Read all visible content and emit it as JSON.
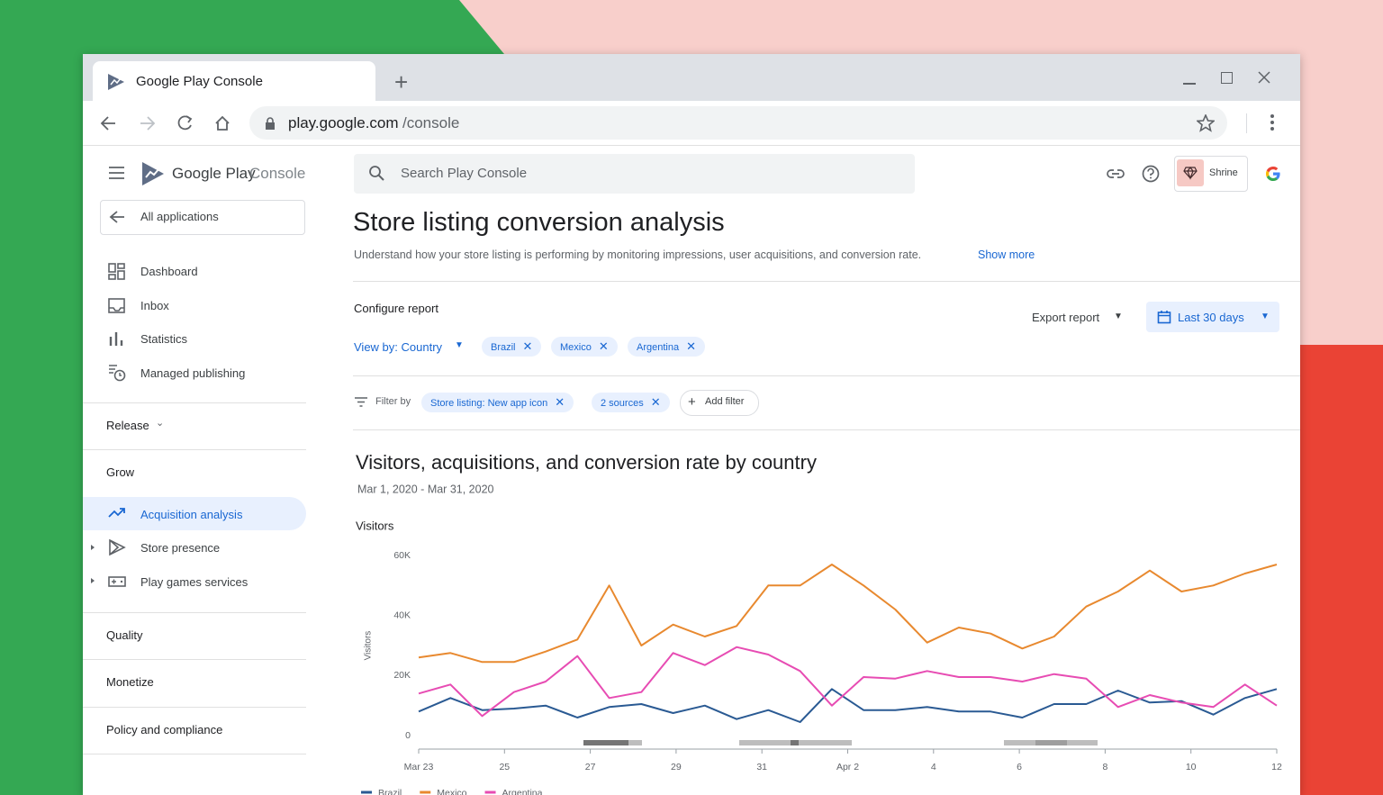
{
  "browser": {
    "tab_title": "Google Play Console",
    "url_host": "play.google.com",
    "url_path": "/console"
  },
  "sidebar": {
    "brand_google": "Google Play",
    "brand_console": "Console",
    "back": "All applications",
    "nav": [
      "Dashboard",
      "Inbox",
      "Statistics",
      "Managed publishing"
    ],
    "release": "Release",
    "grow": "Grow",
    "grow_items": [
      "Acquisition analysis",
      "Store presence",
      "Play games services"
    ],
    "quality": "Quality",
    "monetize": "Monetize",
    "policy": "Policy and compliance"
  },
  "header": {
    "search": "Search Play Console",
    "account": "Shrine"
  },
  "page": {
    "title": "Store listing conversion analysis",
    "description": "Understand how your store listing is performing by monitoring impressions, user acquisitions, and conversion rate.",
    "show_more": "Show more",
    "configure": "Configure report",
    "view_by": "View by: Country",
    "countries": [
      "Brazil",
      "Mexico",
      "Argentina"
    ],
    "export": "Export report",
    "range": "Last 30 days",
    "filter_label": "Filter by",
    "filters": [
      "Store listing: New app icon",
      "2 sources"
    ],
    "add_filter": "Add filter"
  },
  "chart_data": {
    "type": "line",
    "title": "Visitors, acquisitions, and conversion rate by country",
    "subtitle": "Mar 1, 2020 - Mar 31, 2020",
    "y_title": "Visitors",
    "ylabel": "Visitors",
    "x": [
      0,
      0.74,
      1.48,
      2.22,
      2.96,
      3.7,
      4.44,
      5.19,
      5.93,
      6.67,
      7.41,
      8.15,
      8.89,
      9.63,
      10.37,
      11.11,
      11.85,
      12.59,
      13.33,
      14.07,
      14.81,
      15.56,
      16.3,
      17.04,
      17.78,
      18.52,
      19.26,
      20
    ],
    "xlim": [
      0,
      20
    ],
    "xticks": [
      {
        "value": 0,
        "label": "Mar 23"
      },
      {
        "value": 2,
        "label": "25"
      },
      {
        "value": 4,
        "label": "27"
      },
      {
        "value": 6,
        "label": "29"
      },
      {
        "value": 8,
        "label": "31"
      },
      {
        "value": 10,
        "label": "Apr 2"
      },
      {
        "value": 12,
        "label": "4"
      },
      {
        "value": 14,
        "label": "6"
      },
      {
        "value": 16,
        "label": "8"
      },
      {
        "value": 18,
        "label": "10"
      },
      {
        "value": 20,
        "label": "12"
      }
    ],
    "ylim": [
      0,
      60000
    ],
    "yticks": [
      0,
      {
        "value": 20000,
        "label": "20K"
      },
      {
        "value": 40000,
        "label": "40K"
      },
      {
        "value": 60000,
        "label": "60K"
      }
    ],
    "grid": false,
    "series": [
      {
        "name": "Brazil",
        "color": "#2a5a93",
        "values": [
          8000,
          12500,
          8500,
          9000,
          10000,
          6000,
          9500,
          10500,
          7500,
          10000,
          5500,
          8500,
          4500,
          15500,
          8500,
          8500,
          9500,
          8000,
          8000,
          6000,
          10500,
          10500,
          15000,
          11000,
          11500,
          7000,
          12500,
          15500
        ]
      },
      {
        "name": "Mexico",
        "color": "#e8892f",
        "values": [
          26000,
          27500,
          24500,
          24500,
          28000,
          32000,
          50000,
          30000,
          37000,
          33000,
          36500,
          50000,
          50000,
          57000,
          50000,
          42000,
          31000,
          36000,
          34000,
          29000,
          33000,
          43000,
          48000,
          55000,
          48000,
          50000,
          54000,
          57000
        ]
      },
      {
        "name": "Argentina",
        "color": "#e74cb3",
        "values": [
          14000,
          17000,
          6500,
          14500,
          18000,
          26500,
          12500,
          14500,
          27500,
          23500,
          29500,
          27000,
          21500,
          10000,
          19500,
          19000,
          21500,
          19500,
          19500,
          18000,
          20500,
          19000,
          9500,
          13500,
          11000,
          9500,
          17000,
          10000
        ]
      }
    ]
  }
}
